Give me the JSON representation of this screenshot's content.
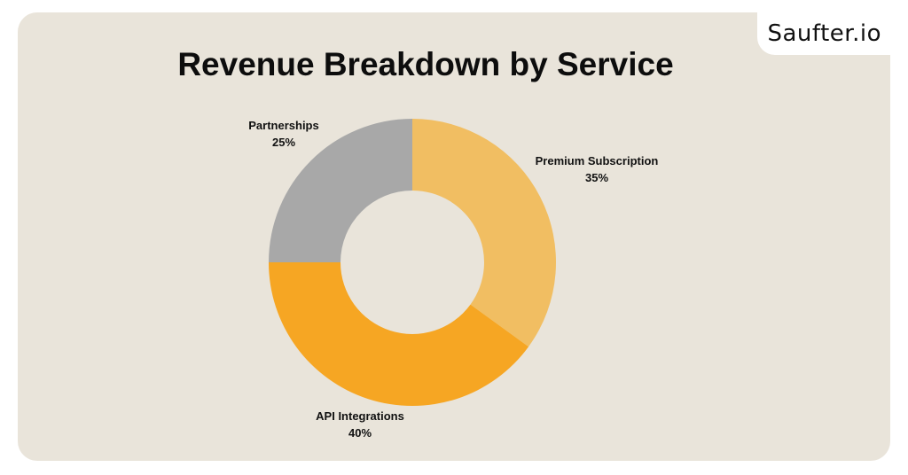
{
  "logo": {
    "text": "Saufter.io"
  },
  "chart_data": {
    "type": "pie",
    "title": "Revenue Breakdown by Service",
    "donut": true,
    "categories": [
      "Premium Subscription",
      "API Integrations",
      "Partnerships"
    ],
    "values": [
      35,
      40,
      25
    ],
    "value_labels": [
      "35%",
      "40%",
      "25%"
    ],
    "colors": [
      "#f1be62",
      "#f6a623",
      "#a8a8a8"
    ],
    "start": "top",
    "direction": "clockwise"
  },
  "colors": {
    "background": "#e9e4da",
    "title": "#0d0d0d"
  }
}
